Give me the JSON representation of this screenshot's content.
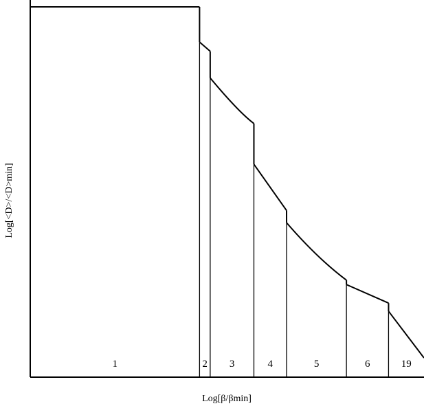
{
  "chart_data": {
    "type": "line",
    "title": "",
    "xlabel": "Log[β/βmin]",
    "ylabel": "Log[<D>/<D>min]",
    "axis_ticks": "none",
    "grid": false,
    "legend": "none",
    "regions": [
      {
        "label": "1",
        "x_start": 0.0,
        "x_end": 0.43
      },
      {
        "label": "2",
        "x_start": 0.43,
        "x_end": 0.457
      },
      {
        "label": "3",
        "x_start": 0.457,
        "x_end": 0.568
      },
      {
        "label": "4",
        "x_start": 0.568,
        "x_end": 0.651
      },
      {
        "label": "5",
        "x_start": 0.651,
        "x_end": 0.803
      },
      {
        "label": "6",
        "x_start": 0.803,
        "x_end": 0.91
      },
      {
        "label": "19",
        "x_start": 0.91,
        "x_end": 1.0
      }
    ],
    "segments": [
      {
        "region": "1",
        "points": [
          [
            0.0,
            1.0
          ],
          [
            0.43,
            1.0
          ]
        ]
      },
      {
        "region": "2",
        "points": [
          [
            0.43,
            0.905
          ],
          [
            0.457,
            0.88
          ]
        ]
      },
      {
        "region": "3",
        "points": [
          [
            0.457,
            0.808
          ],
          [
            0.53,
            0.715
          ],
          [
            0.568,
            0.685
          ]
        ]
      },
      {
        "region": "4",
        "points": [
          [
            0.568,
            0.575
          ],
          [
            0.651,
            0.45
          ]
        ]
      },
      {
        "region": "5",
        "points": [
          [
            0.651,
            0.417
          ],
          [
            0.73,
            0.32
          ],
          [
            0.803,
            0.262
          ]
        ]
      },
      {
        "region": "6",
        "points": [
          [
            0.803,
            0.25
          ],
          [
            0.91,
            0.2
          ]
        ]
      },
      {
        "region": "19",
        "points": [
          [
            0.91,
            0.178
          ],
          [
            1.0,
            0.052
          ]
        ]
      }
    ],
    "drops": [
      [
        0.43,
        1.0,
        0.905
      ],
      [
        0.457,
        0.88,
        0.808
      ],
      [
        0.568,
        0.685,
        0.575
      ],
      [
        0.651,
        0.45,
        0.417
      ],
      [
        0.803,
        0.262,
        0.25
      ],
      [
        0.91,
        0.2,
        0.178
      ]
    ],
    "xlim": [
      0,
      1
    ],
    "ylim": [
      0,
      1
    ]
  }
}
